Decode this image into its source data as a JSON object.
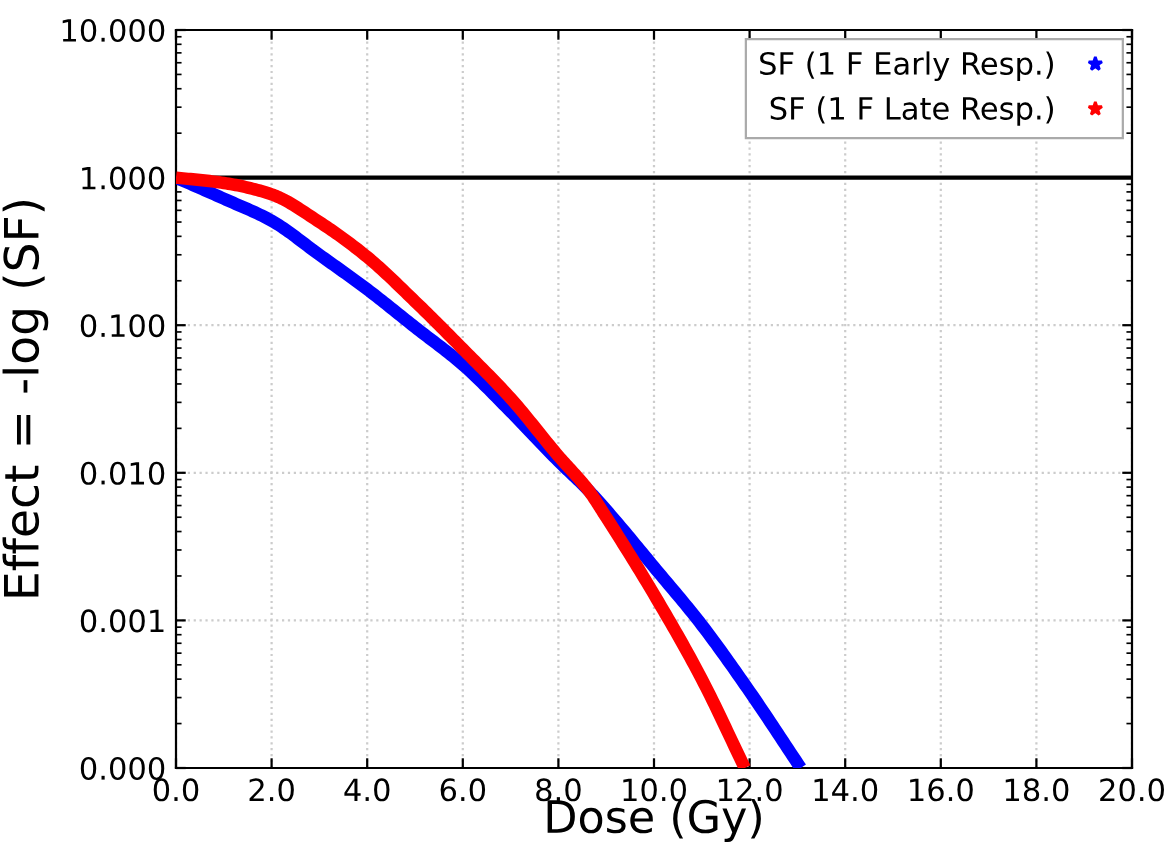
{
  "chart_data": {
    "type": "line",
    "xlabel": "Dose (Gy)",
    "ylabel": "Effect = -log (SF)",
    "series": [
      {
        "name": "SF (1 F Early Resp.)",
        "color": "#0000ff",
        "x": [
          0,
          1,
          2,
          3,
          4,
          5,
          6,
          7,
          8,
          8.63,
          9,
          10,
          11,
          12,
          13.07
        ],
        "values": [
          1.0,
          0.72,
          0.51,
          0.3,
          0.175,
          0.097,
          0.054,
          0.026,
          0.012,
          0.0076,
          0.0056,
          0.0023,
          0.00093,
          0.00033,
          0.0001
        ]
      },
      {
        "name": "SF (1 F Late Resp.)",
        "color": "#ff0000",
        "x": [
          0,
          1,
          2,
          3,
          4,
          5,
          6,
          7,
          8,
          8.63,
          9,
          10,
          11,
          11.9
        ],
        "values": [
          1.0,
          0.92,
          0.77,
          0.5,
          0.29,
          0.145,
          0.069,
          0.032,
          0.013,
          0.0076,
          0.005,
          0.0015,
          0.0004,
          0.0001
        ]
      }
    ],
    "xlim": [
      0,
      20
    ],
    "xticks": [
      {
        "value": 0,
        "label": "0.0"
      },
      {
        "value": 2,
        "label": "2.0"
      },
      {
        "value": 4,
        "label": "4.0"
      },
      {
        "value": 6,
        "label": "6.0"
      },
      {
        "value": 8,
        "label": "8.0"
      },
      {
        "value": 10,
        "label": "10.0"
      },
      {
        "value": 12,
        "label": "12.0"
      },
      {
        "value": 14,
        "label": "14.0"
      },
      {
        "value": 16,
        "label": "16.0"
      },
      {
        "value": 18,
        "label": "18.0"
      },
      {
        "value": 20,
        "label": "20.0"
      }
    ],
    "ylim": [
      0.0001,
      10
    ],
    "yticks": [
      {
        "value": 0.0001,
        "label": "0.000"
      },
      {
        "value": 0.001,
        "label": "0.001"
      },
      {
        "value": 0.01,
        "label": "0.010"
      },
      {
        "value": 0.1,
        "label": "0.100"
      },
      {
        "value": 1,
        "label": "1.000"
      },
      {
        "value": 10,
        "label": "10.000"
      }
    ],
    "log": "y",
    "grid": true,
    "legend": "top right",
    "marker": "none",
    "line_style": "solid",
    "ref_lines": [
      {
        "axis": "y",
        "value": 1,
        "color": "#000000"
      }
    ]
  }
}
